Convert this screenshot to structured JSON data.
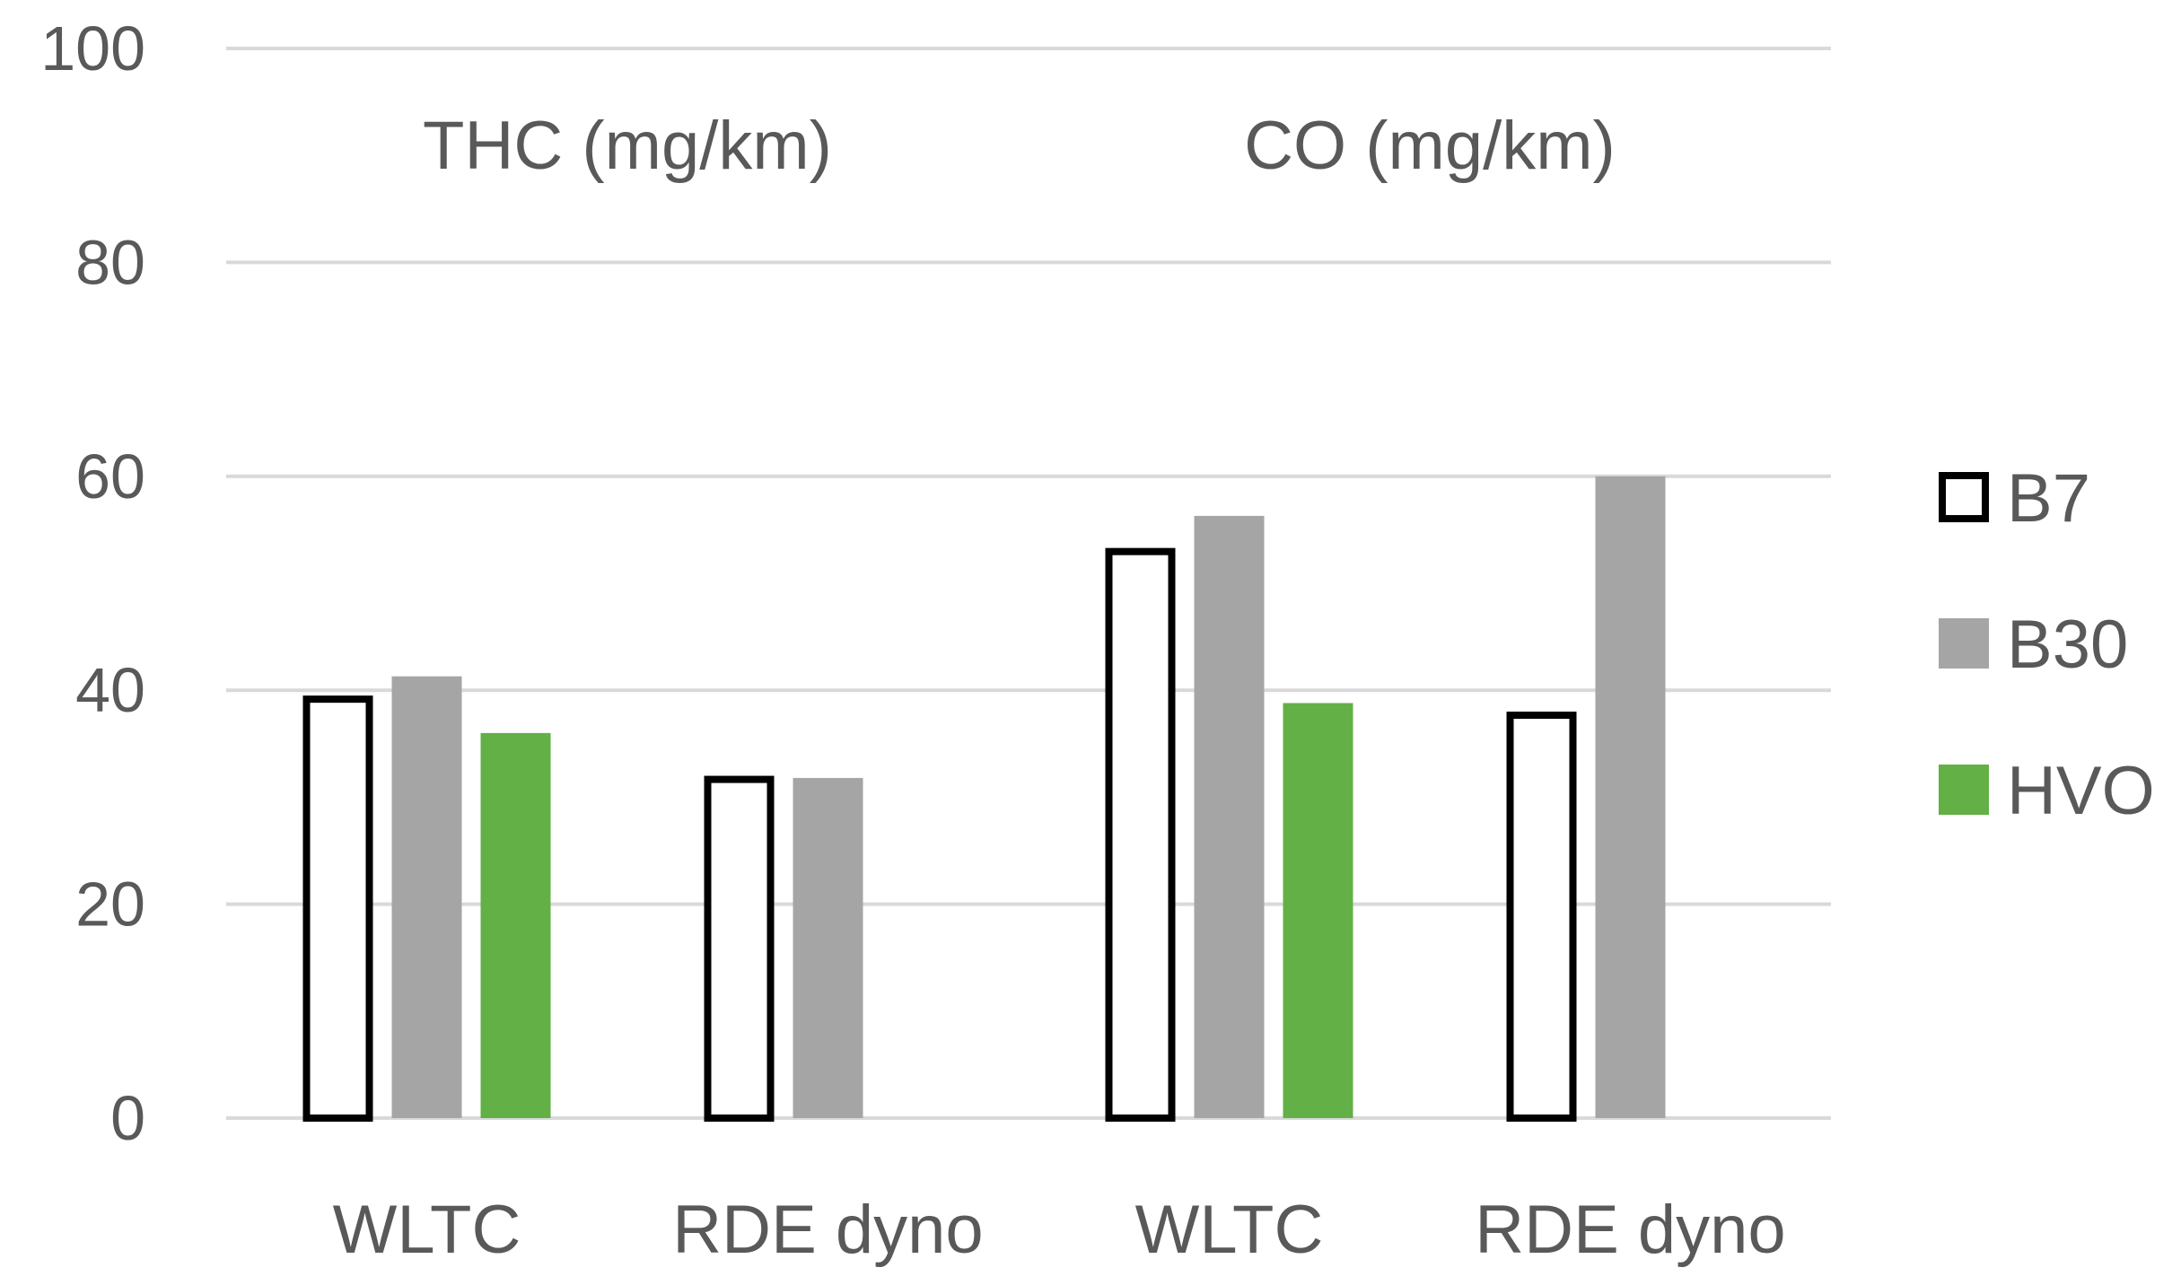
{
  "chart_data": {
    "type": "bar",
    "title": "",
    "xlabel": "",
    "ylabel": "",
    "ylim": [
      0,
      100
    ],
    "yticks": [
      0,
      20,
      40,
      60,
      80,
      100
    ],
    "grid": true,
    "legend_position": "right",
    "groups": [
      {
        "label": "THC (mg/km)",
        "categories": [
          "WLTC",
          "RDE dyno"
        ]
      },
      {
        "label": "CO (mg/km)",
        "categories": [
          "WLTC",
          "RDE dyno"
        ]
      }
    ],
    "categories": [
      "WLTC",
      "RDE dyno",
      "WLTC",
      "RDE dyno"
    ],
    "series": [
      {
        "name": "B7",
        "style": "outline",
        "color": "#000000",
        "values": [
          39.5,
          32,
          53.3,
          38
        ]
      },
      {
        "name": "B30",
        "style": "fill",
        "color": "#a5a5a5",
        "values": [
          41.3,
          31.8,
          56.3,
          60
        ]
      },
      {
        "name": "HVO",
        "style": "fill",
        "color": "#62b046",
        "values": [
          36,
          null,
          38.8,
          null
        ]
      }
    ]
  }
}
